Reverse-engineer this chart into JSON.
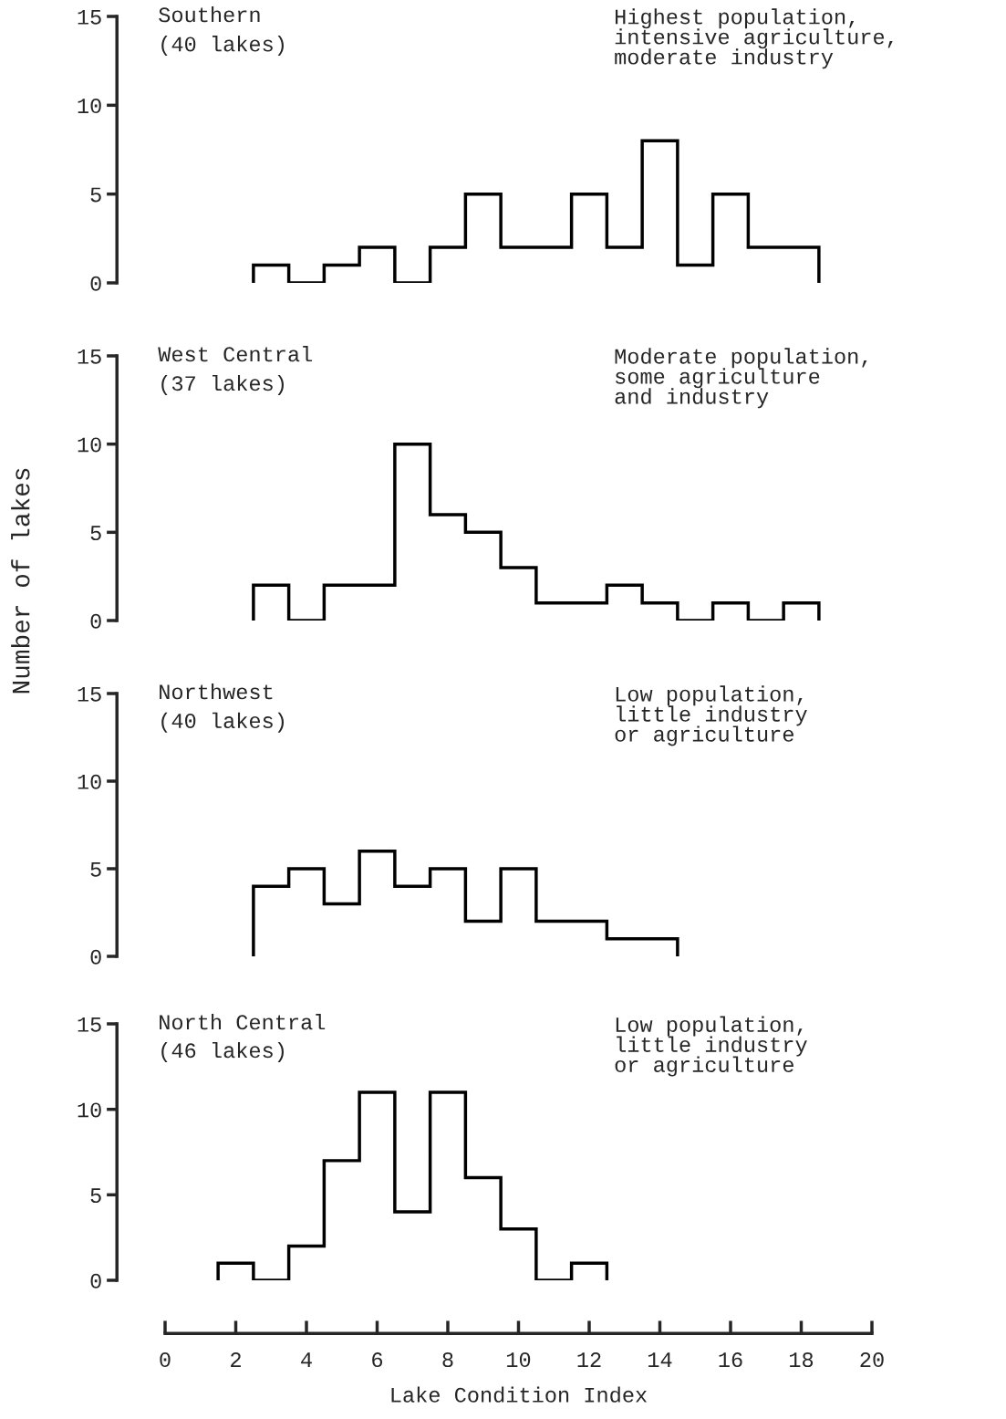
{
  "chart_data": [
    {
      "type": "histogram",
      "title": "Southern",
      "subtitle": "(40 lakes)",
      "annotations": [
        "Highest population,\nintensive agriculture,\nmoderate industry"
      ],
      "bins": [
        2.5,
        3.5,
        4.5,
        5.5,
        6.5,
        7.5,
        8.5,
        9.5,
        10.5,
        11.5,
        12.5,
        13.5,
        14.5,
        15.5,
        16.5,
        17.5,
        18.5
      ],
      "values": [
        1,
        0,
        1,
        2,
        0,
        2,
        5,
        2,
        2,
        5,
        2,
        8,
        1,
        5,
        2,
        2
      ],
      "color": "#000000",
      "xlim": [
        0,
        20
      ],
      "ylim": [
        0,
        15
      ],
      "yticks": [
        0,
        5,
        10,
        15
      ],
      "tick_labels": "y",
      "grid": false,
      "legend": false
    },
    {
      "type": "histogram",
      "title": "West Central",
      "subtitle": "(37 lakes)",
      "annotations": [
        "Moderate population,\nsome agriculture\nand industry"
      ],
      "ylabel": "Number of lakes",
      "bins": [
        2.5,
        3.5,
        4.5,
        5.5,
        6.5,
        7.5,
        8.5,
        9.5,
        10.5,
        11.5,
        12.5,
        13.5,
        14.5,
        15.5,
        16.5,
        17.5,
        18.5
      ],
      "values": [
        2,
        0,
        2,
        2,
        10,
        6,
        5,
        3,
        1,
        1,
        2,
        1,
        0,
        1,
        0,
        1
      ],
      "color": "#000000",
      "xlim": [
        0,
        20
      ],
      "ylim": [
        0,
        15
      ],
      "yticks": [
        0,
        5,
        10,
        15
      ],
      "tick_labels": "y",
      "grid": false,
      "legend": false
    },
    {
      "type": "histogram",
      "title": "Northwest",
      "subtitle": "(40 lakes)",
      "annotations": [
        "Low population,\nlittle industry\nor agriculture"
      ],
      "bins": [
        2.5,
        3.5,
        4.5,
        5.5,
        6.5,
        7.5,
        8.5,
        9.5,
        10.5,
        11.5,
        12.5,
        13.5,
        14.5
      ],
      "values": [
        4,
        5,
        3,
        6,
        4,
        5,
        2,
        5,
        2,
        2,
        1,
        1
      ],
      "color": "#000000",
      "xlim": [
        0,
        20
      ],
      "ylim": [
        0,
        15
      ],
      "yticks": [
        0,
        5,
        10,
        15
      ],
      "tick_labels": "y",
      "grid": false,
      "legend": false
    },
    {
      "type": "histogram",
      "title": "North Central",
      "subtitle": "(46 lakes)",
      "annotations": [
        "Low population,\nlittle industry\nor agriculture"
      ],
      "xlabel": "Lake Condition Index",
      "bins": [
        1.5,
        2.5,
        3.5,
        4.5,
        5.5,
        6.5,
        7.5,
        8.5,
        9.5,
        10.5,
        11.5,
        12.5
      ],
      "values": [
        1,
        0,
        2,
        7,
        11,
        4,
        11,
        6,
        3,
        0,
        1
      ],
      "color": "#000000",
      "xlim": [
        0,
        20
      ],
      "xticks": [
        0,
        2,
        4,
        6,
        8,
        10,
        12,
        14,
        16,
        18,
        20
      ],
      "ylim": [
        0,
        15
      ],
      "yticks": [
        0,
        5,
        10,
        15
      ],
      "grid": false,
      "legend": false
    }
  ]
}
